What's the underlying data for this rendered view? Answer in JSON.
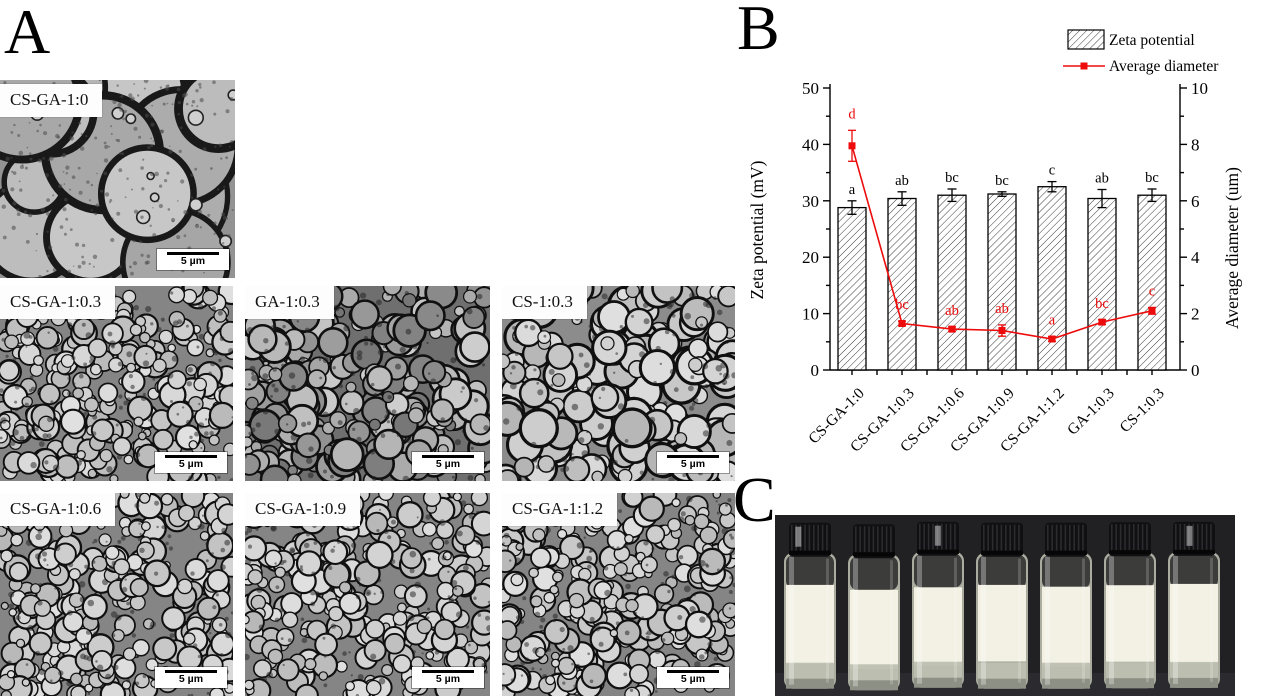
{
  "panels": {
    "a": {
      "label": "A",
      "micrographs": [
        {
          "label": "CS-GA-1:0",
          "scale_bar": "5 µm"
        },
        {
          "label": "CS-GA-1:0.3",
          "scale_bar": "5 µm"
        },
        {
          "label": "GA-1:0.3",
          "scale_bar": "5 µm"
        },
        {
          "label": "CS-1:0.3",
          "scale_bar": "5 µm"
        },
        {
          "label": "CS-GA-1:0.6",
          "scale_bar": "5 µm"
        },
        {
          "label": "CS-GA-1:0.9",
          "scale_bar": "5 µm"
        },
        {
          "label": "CS-GA-1:1.2",
          "scale_bar": "5 µm"
        }
      ]
    },
    "b": {
      "label": "B"
    },
    "c": {
      "label": "C",
      "vial_count": 7
    }
  },
  "chart_data": {
    "type": "bar",
    "categories": [
      "CS-GA-1:0",
      "CS-GA-1:0.3",
      "CS-GA-1:0.6",
      "CS-GA-1:0.9",
      "CS-GA-1:1.2",
      "GA-1:0.3",
      "CS-1:0.3"
    ],
    "series": [
      {
        "name": "Zeta potential",
        "type": "bar",
        "axis": "left",
        "values": [
          28.8,
          30.4,
          31.0,
          31.2,
          32.5,
          30.4,
          31.0
        ],
        "errors": [
          1.2,
          1.2,
          1.1,
          0.4,
          0.9,
          1.6,
          1.1
        ],
        "sig_letters": [
          "a",
          "ab",
          "bc",
          "bc",
          "c",
          "ab",
          "bc"
        ],
        "style": "hatched",
        "edge_color": "#000000",
        "hatch_color": "#3c3c3c"
      },
      {
        "name": "Average diameter",
        "type": "line",
        "axis": "right",
        "values": [
          7.95,
          1.65,
          1.45,
          1.4,
          1.1,
          1.7,
          2.1
        ],
        "errors": [
          0.55,
          0.08,
          0.08,
          0.2,
          0.08,
          0.08,
          0.12
        ],
        "sig_letters": [
          "d",
          "bc",
          "ab",
          "ab",
          "a",
          "bc",
          "c"
        ],
        "color": "#ed0b0b",
        "marker": "square"
      }
    ],
    "left_axis": {
      "label": "Zeta potential (mV)",
      "min": 0,
      "max": 50,
      "major_tick": 10,
      "minor_tick": 5
    },
    "right_axis": {
      "label": "Average diameter (um)",
      "min": 0,
      "max": 10,
      "major_tick": 2,
      "minor_tick": 1
    },
    "legend": [
      "Zeta potential",
      "Average diameter"
    ],
    "legend_position": "top-right",
    "grid": false
  }
}
